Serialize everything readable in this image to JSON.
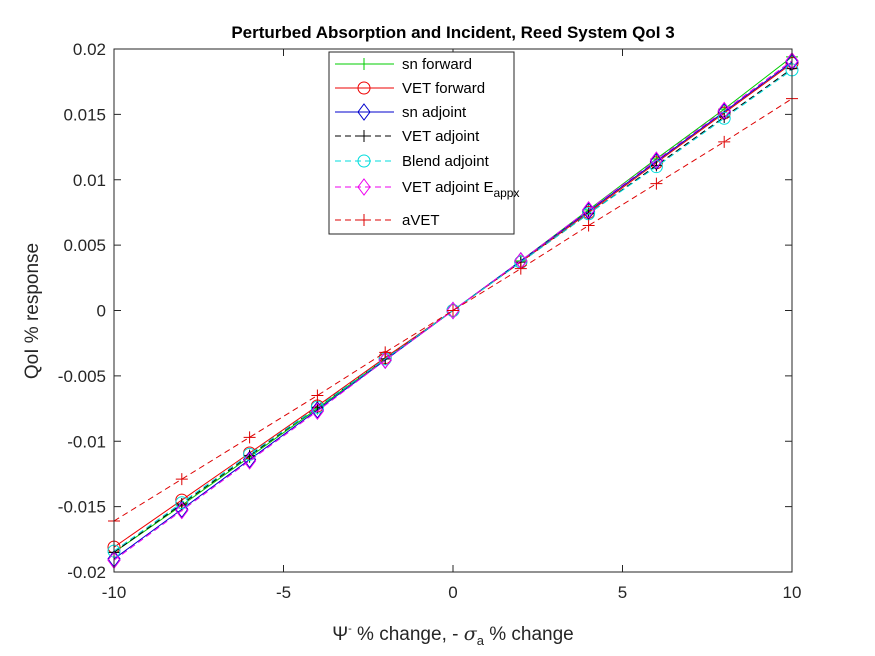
{
  "chart_data": {
    "type": "line",
    "title": "Perturbed Absorption and Incident, Reed System QoI 3",
    "xlabel": {
      "psi": "Ψ",
      "psi_sup": "-",
      "mid": " % change, - ",
      "sigma": "σ",
      "sigma_sub": "a",
      "end": " % change"
    },
    "ylabel": "QoI % response",
    "xlim": [
      -10,
      10
    ],
    "ylim": [
      -0.02,
      0.02
    ],
    "xticks": [
      "-10",
      "-5",
      "0",
      "5",
      "10"
    ],
    "xtick_values": [
      -10,
      -5,
      0,
      5,
      10
    ],
    "yticks": [
      "-0.02",
      "-0.015",
      "-0.01",
      "-0.005",
      "0",
      "0.005",
      "0.01",
      "0.015",
      "0.02"
    ],
    "ytick_values": [
      -0.02,
      -0.015,
      -0.01,
      -0.005,
      0,
      0.005,
      0.01,
      0.015,
      0.02
    ],
    "grid": false,
    "legend_position": "top-center",
    "x": [
      -10,
      -8,
      -6,
      -4,
      -2,
      0,
      2,
      4,
      6,
      8,
      10
    ],
    "series": [
      {
        "name": "sn forward",
        "color": "#00cc00",
        "dash": "solid",
        "marker": "plus",
        "values": [
          -0.0185,
          -0.0149,
          -0.0112,
          -0.0075,
          -0.0037,
          0,
          0.0038,
          0.0077,
          0.0116,
          0.0154,
          0.0194
        ]
      },
      {
        "name": "VET forward",
        "color": "#ee0000",
        "dash": "solid",
        "marker": "circle",
        "values": [
          -0.0181,
          -0.0145,
          -0.0109,
          -0.0073,
          -0.0036,
          0,
          0.0037,
          0.0075,
          0.0113,
          0.0151,
          0.0189
        ]
      },
      {
        "name": "sn adjoint",
        "color": "#0000cc",
        "dash": "solid",
        "marker": "diamond",
        "values": [
          -0.019,
          -0.0152,
          -0.0114,
          -0.0076,
          -0.0038,
          0,
          0.0038,
          0.0076,
          0.0114,
          0.0152,
          0.019
        ]
      },
      {
        "name": "VET adjoint",
        "color": "#000000",
        "dash": "dashed",
        "marker": "plus",
        "values": [
          -0.0185,
          -0.0148,
          -0.0111,
          -0.0074,
          -0.0037,
          0,
          0.0037,
          0.0074,
          0.0111,
          0.0148,
          0.0185
        ]
      },
      {
        "name": "Blend adjoint",
        "color": "#00dddd",
        "dash": "dashed",
        "marker": "circle",
        "values": [
          -0.0184,
          -0.0147,
          -0.011,
          -0.0074,
          -0.0037,
          0,
          0.0037,
          0.0074,
          0.011,
          0.0147,
          0.0184
        ]
      },
      {
        "name": "VET adjoint E",
        "name_sub": "appx",
        "color": "#ee00ee",
        "dash": "dashed",
        "marker": "diamond",
        "values": [
          -0.0191,
          -0.0153,
          -0.0115,
          -0.0077,
          -0.0038,
          0,
          0.0038,
          0.0077,
          0.0115,
          0.0153,
          0.0191
        ]
      },
      {
        "name": "aVET",
        "color": "#dd0000",
        "dash": "dashed",
        "marker": "plus",
        "values": [
          -0.0161,
          -0.0129,
          -0.0097,
          -0.0065,
          -0.0032,
          0,
          0.0032,
          0.0065,
          0.0097,
          0.0129,
          0.0162
        ]
      }
    ]
  }
}
